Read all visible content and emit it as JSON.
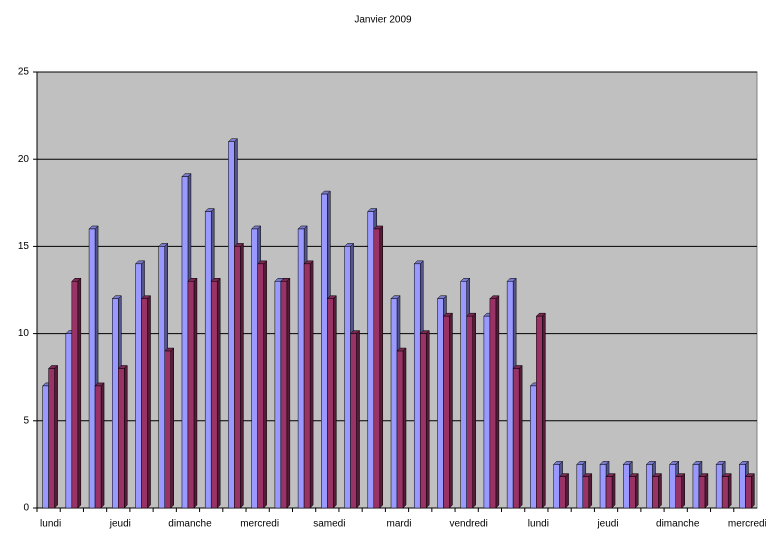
{
  "chart_data": {
    "type": "bar",
    "title": "Janvier 2009",
    "categories": [
      "lundi",
      null,
      null,
      "jeudi",
      null,
      null,
      "dimanche",
      null,
      null,
      "mercredi",
      null,
      null,
      "samedi",
      null,
      null,
      "mardi",
      null,
      null,
      "vendredi",
      null,
      null,
      "lundi",
      null,
      null,
      "jeudi",
      null,
      null,
      "dimanche",
      null,
      null,
      "mercredi"
    ],
    "series": [
      {
        "color": "#9999ff",
        "values": [
          7,
          10,
          16,
          12,
          14,
          15,
          19,
          17,
          21,
          16,
          13,
          16,
          18,
          15,
          17,
          12,
          14,
          12,
          13,
          11,
          13,
          7,
          2.5,
          2.5,
          2.5,
          2.5,
          2.5,
          2.5,
          2.5,
          2.5,
          2.5
        ]
      },
      {
        "color": "#993366",
        "values": [
          8,
          13,
          7,
          8,
          12,
          9,
          13,
          13,
          15,
          14,
          13,
          14,
          12,
          10,
          16,
          9,
          10,
          11,
          11,
          12,
          8,
          11,
          1.8,
          1.8,
          1.8,
          1.8,
          1.8,
          1.8,
          1.8,
          1.8,
          1.8
        ]
      }
    ],
    "ylim": [
      0,
      25
    ],
    "yticks": [
      0,
      5,
      10,
      15,
      20,
      25
    ],
    "grid": true,
    "background": "#c0c0c0"
  }
}
